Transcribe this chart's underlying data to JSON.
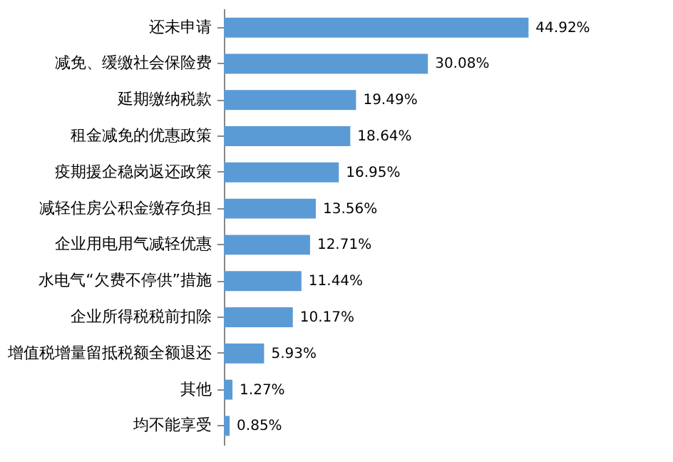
{
  "chart_data": {
    "type": "bar",
    "orientation": "horizontal",
    "color": "#5b9bd5",
    "categories": [
      "还未申请",
      "减免、缓缴社会保险费",
      "延期缴纳税款",
      "租金减免的优惠政策",
      "疫期援企稳岗返还政策",
      "减轻住房公积金缴存负担",
      "企业用电用气减轻优惠",
      "水电气“欠费不停供”措施",
      "企业所得税税前扣除",
      "增值税增量留抵税额全额退还",
      "其他",
      "均不能享受"
    ],
    "values": [
      44.92,
      30.08,
      19.49,
      18.64,
      16.95,
      13.56,
      12.71,
      11.44,
      10.17,
      5.93,
      1.27,
      0.85
    ],
    "value_labels": [
      "44.92%",
      "30.08%",
      "19.49%",
      "18.64%",
      "16.95%",
      "13.56%",
      "12.71%",
      "11.44%",
      "10.17%",
      "5.93%",
      "1.27%",
      "0.85%"
    ],
    "tick_labels": "y"
  }
}
